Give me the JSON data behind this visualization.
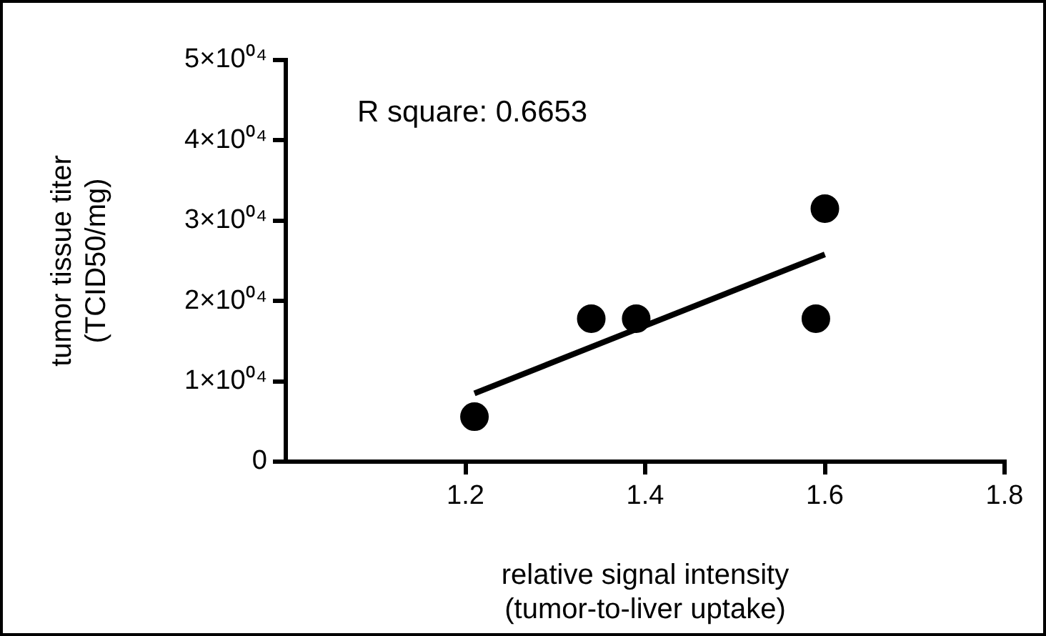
{
  "chart_data": {
    "type": "scatter",
    "xlabel": "relative signal intensity\n(tumor-to-liver uptake)",
    "ylabel": "tumor tissue titer\n(TCID50/mg)",
    "annotations": [
      "R square: 0.6653"
    ],
    "series": [
      {
        "color": "#000000",
        "marker": "circle",
        "x": [
          1.21,
          1.34,
          1.39,
          1.59,
          1.6
        ],
        "values": [
          5600,
          17800,
          17800,
          17800,
          31500
        ]
      },
      {
        "type": "line",
        "color": "#000000",
        "marker": "none",
        "line_style": "solid",
        "x": [
          1.21,
          1.6
        ],
        "values": [
          8500,
          25800
        ]
      }
    ],
    "xlim": [
      1.0,
      1.8
    ],
    "xticks": [
      1.2,
      1.4,
      1.6,
      1.8
    ],
    "ylim": [
      0,
      50000
    ],
    "yticks": [
      {
        "value": 0,
        "label": "0"
      },
      {
        "value": 10000,
        "label": "1×10⁰⁴"
      },
      {
        "value": 20000,
        "label": "2×10⁰⁴"
      },
      {
        "value": 30000,
        "label": "3×10⁰⁴"
      },
      {
        "value": 40000,
        "label": "4×10⁰⁴"
      },
      {
        "value": 50000,
        "label": "5×10⁰⁴"
      }
    ],
    "grid": false,
    "legend": false
  }
}
